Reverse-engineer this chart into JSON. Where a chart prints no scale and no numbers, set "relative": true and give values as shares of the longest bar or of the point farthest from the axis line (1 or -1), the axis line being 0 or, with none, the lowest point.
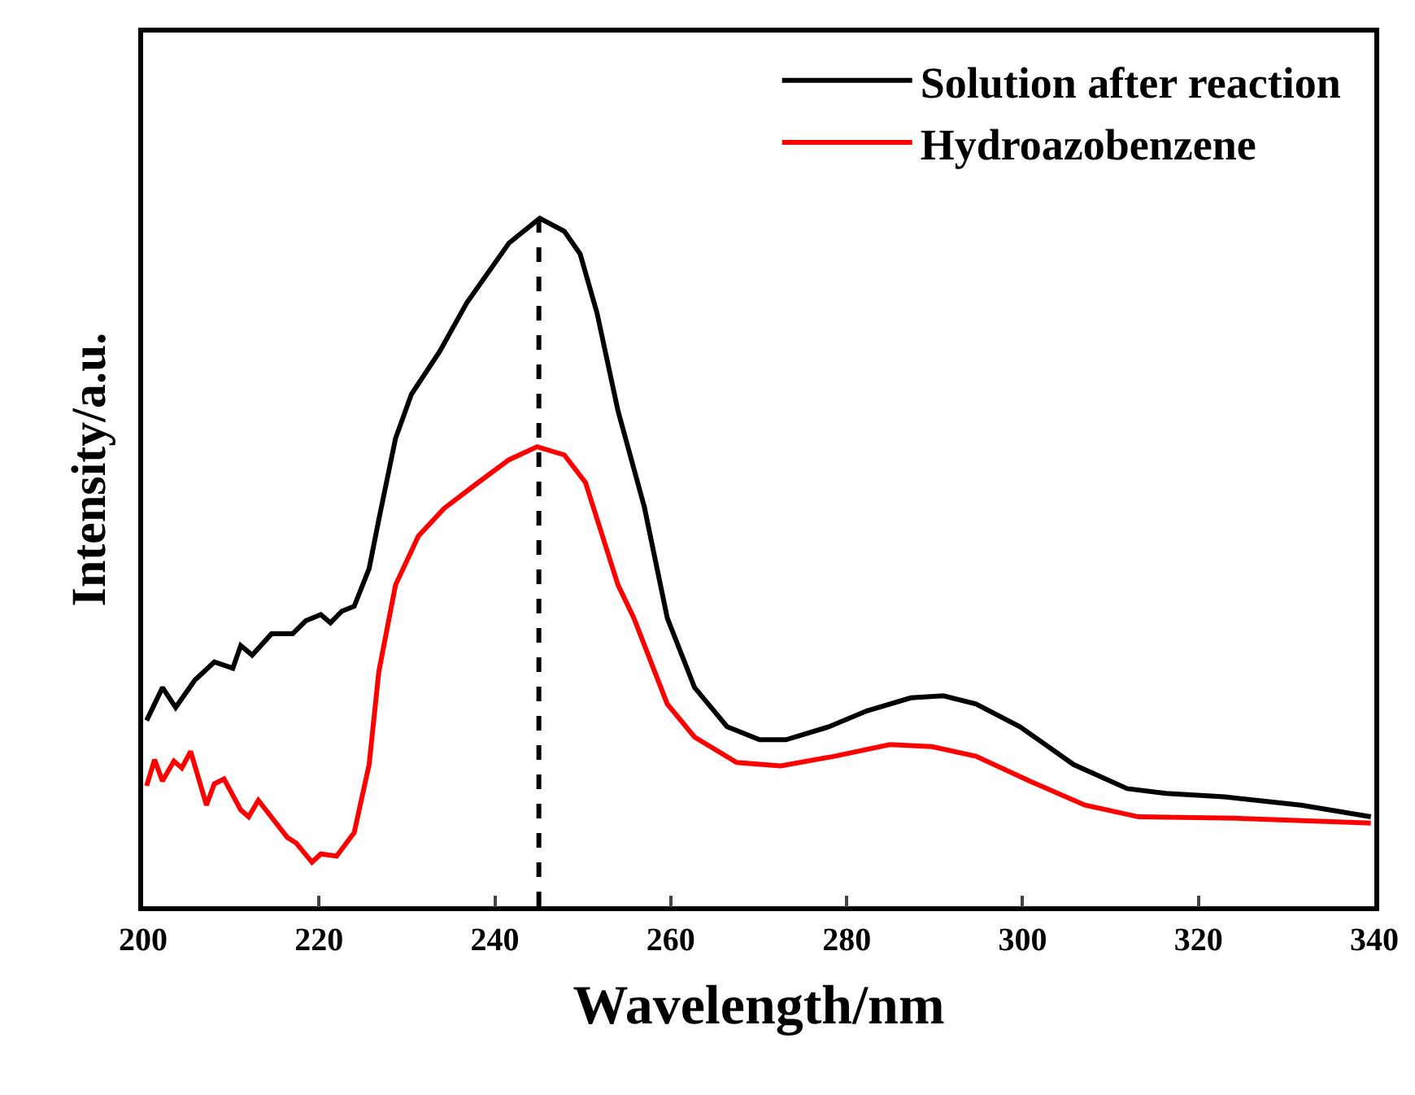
{
  "chart_data": {
    "type": "line",
    "xlabel": "Wavelength/nm",
    "ylabel": "Intensity/a.u.",
    "relative": true,
    "tick_labels": "x",
    "legend": "top right",
    "grid": false,
    "marker": "none",
    "line_style": "solid",
    "xlim": [
      200,
      340
    ],
    "xticks": [
      200,
      220,
      240,
      260,
      280,
      300,
      320,
      340
    ],
    "series": [
      {
        "name": "Solution after reaction",
        "color": "#000000",
        "x": [
          200.4,
          202.2,
          203.7,
          205.9,
          208.1,
          210.2,
          211.1,
          212.4,
          214.6,
          217.0,
          218.5,
          220.2,
          221.3,
          222.6,
          224.0,
          225.7,
          226.8,
          228.7,
          230.5,
          233.7,
          236.8,
          241.6,
          245.1,
          247.9,
          249.7,
          251.6,
          254.0,
          257.0,
          259.6,
          262.7,
          266.4,
          270.1,
          273.1,
          278.0,
          282.3,
          287.3,
          291.0,
          294.7,
          299.7,
          305.8,
          311.9,
          316.3,
          323.0,
          331.7,
          339.6
        ],
        "values": [
          0.27,
          0.318,
          0.289,
          0.329,
          0.355,
          0.346,
          0.379,
          0.365,
          0.396,
          0.396,
          0.415,
          0.424,
          0.412,
          0.429,
          0.436,
          0.491,
          0.562,
          0.68,
          0.744,
          0.806,
          0.877,
          0.964,
          1.0,
          0.981,
          0.948,
          0.863,
          0.72,
          0.58,
          0.419,
          0.318,
          0.261,
          0.242,
          0.242,
          0.261,
          0.284,
          0.303,
          0.306,
          0.294,
          0.261,
          0.206,
          0.171,
          0.164,
          0.159,
          0.147,
          0.13
        ]
      },
      {
        "name": "Hydroazobenzene",
        "color": "#ff0000",
        "x": [
          200.4,
          201.3,
          202.2,
          203.5,
          204.4,
          205.4,
          207.2,
          208.1,
          209.2,
          211.1,
          212.0,
          213.1,
          216.4,
          217.4,
          219.2,
          220.2,
          222.0,
          224.0,
          225.7,
          226.8,
          228.7,
          231.3,
          234.2,
          237.9,
          241.6,
          244.8,
          247.9,
          250.3,
          254.0,
          255.8,
          259.6,
          262.7,
          267.5,
          272.5,
          278.6,
          284.9,
          289.7,
          294.7,
          300.8,
          307.1,
          313.2,
          324.3,
          339.6
        ],
        "values": [
          0.175,
          0.213,
          0.182,
          0.211,
          0.201,
          0.225,
          0.147,
          0.178,
          0.185,
          0.14,
          0.13,
          0.154,
          0.1,
          0.092,
          0.064,
          0.076,
          0.073,
          0.107,
          0.206,
          0.341,
          0.467,
          0.538,
          0.578,
          0.614,
          0.649,
          0.668,
          0.656,
          0.616,
          0.467,
          0.419,
          0.294,
          0.246,
          0.209,
          0.204,
          0.218,
          0.235,
          0.232,
          0.218,
          0.182,
          0.147,
          0.13,
          0.128,
          0.121
        ]
      }
    ],
    "ref_lines": [
      {
        "axis": "x",
        "value": 245,
        "color": "#000000",
        "line_style": "dashed"
      }
    ]
  }
}
